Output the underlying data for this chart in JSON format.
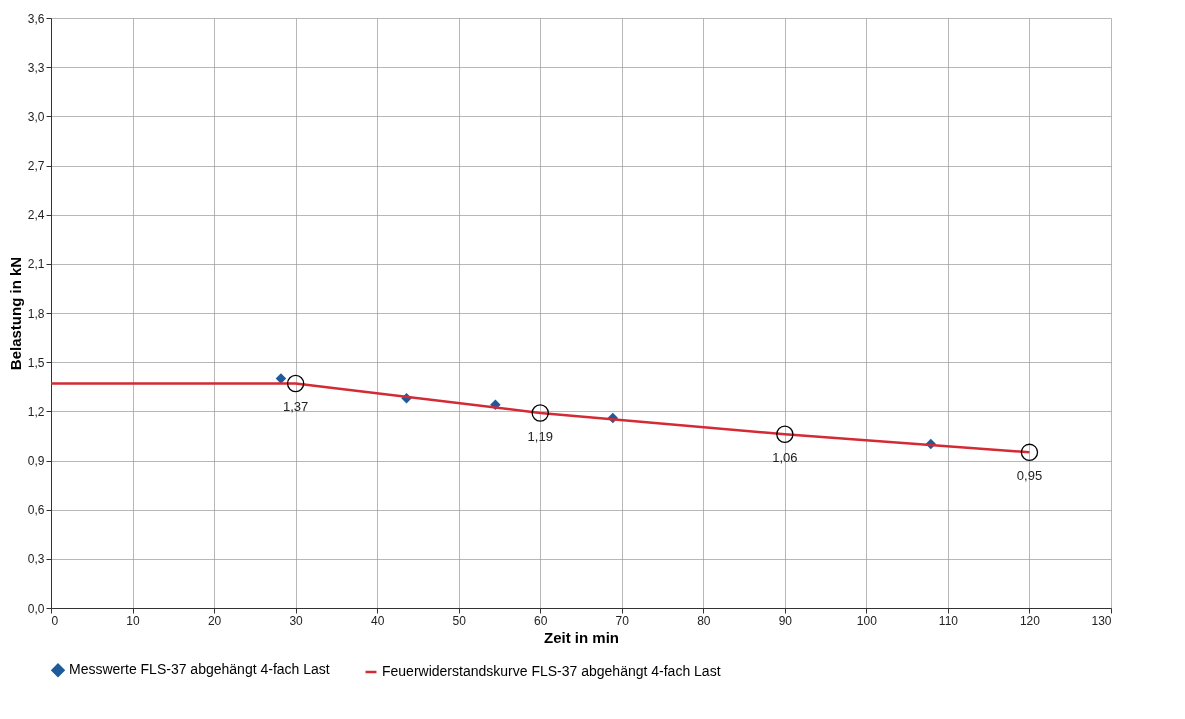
{
  "chart_data": {
    "type": "line",
    "xlabel": "Zeit in min",
    "ylabel": "Belastung in kN",
    "xlim": [
      0,
      130
    ],
    "xticks": [
      0,
      10,
      20,
      30,
      40,
      50,
      60,
      70,
      80,
      90,
      100,
      110,
      120,
      130
    ],
    "ylim": [
      0,
      3.6
    ],
    "yticks": [
      {
        "value": 0,
        "label": "0,0"
      },
      {
        "value": 0.3,
        "label": "0,3"
      },
      {
        "value": 0.6,
        "label": "0,6"
      },
      {
        "value": 0.9,
        "label": "0,9"
      },
      {
        "value": 1.2,
        "label": "1,2"
      },
      {
        "value": 1.5,
        "label": "1,5"
      },
      {
        "value": 1.8,
        "label": "1,8"
      },
      {
        "value": 2.1,
        "label": "2,1"
      },
      {
        "value": 2.4,
        "label": "2,4"
      },
      {
        "value": 2.7,
        "label": "2,7"
      },
      {
        "value": 3.0,
        "label": "3,0"
      },
      {
        "value": 3.3,
        "label": "3,3"
      },
      {
        "value": 3.6,
        "label": "3,6"
      }
    ],
    "grid": true,
    "legend": "bottom",
    "series": [
      {
        "name": "Messwerte FLS-37 abgehängt 4-fach Last",
        "type": "scatter",
        "marker": "diamond",
        "color": "#1f5a9a",
        "x": [
          28.2,
          43.6,
          54.5,
          68.9,
          107.9
        ],
        "values": [
          1.4,
          1.28,
          1.24,
          1.16,
          1.0
        ]
      },
      {
        "name": "Feuerwiderstandskurve FLS-37 abgehängt 4-fach Last",
        "type": "line",
        "marker": "none",
        "color": "#d42a35",
        "x": [
          0,
          30,
          60,
          90,
          120
        ],
        "values": [
          1.37,
          1.37,
          1.19,
          1.06,
          0.95
        ]
      },
      {
        "type": "scatter",
        "marker": "circle",
        "color": "#000000",
        "x": [
          30,
          60,
          90,
          120
        ],
        "values": [
          1.37,
          1.19,
          1.06,
          0.95
        ],
        "value_labels": [
          "1,37",
          "1,19",
          "1,06",
          "0,95"
        ]
      }
    ]
  }
}
